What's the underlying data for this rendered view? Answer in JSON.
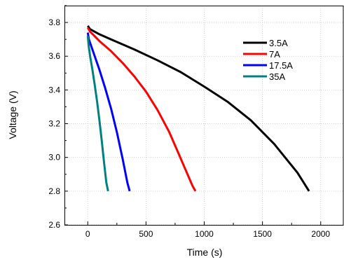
{
  "chart_data": {
    "type": "line",
    "xlabel": "Time (s)",
    "ylabel": "Voltage (V)",
    "xlim": [
      -200,
      2200
    ],
    "ylim": [
      2.6,
      3.9
    ],
    "xticks": [
      0,
      500,
      1000,
      1500,
      2000
    ],
    "xtick_labels": [
      "0",
      "500",
      "1000",
      "1500",
      "2000"
    ],
    "yticks": [
      2.6,
      2.8,
      3.0,
      3.2,
      3.4,
      3.6,
      3.8
    ],
    "ytick_labels": [
      "2.6",
      "2.8",
      "3.0",
      "3.2",
      "3.4",
      "3.6",
      "3.8"
    ],
    "grid": true,
    "legend_position": "top-right",
    "series": [
      {
        "name": "3.5A",
        "color": "#000000",
        "x": [
          0,
          20,
          60,
          100,
          200,
          400,
          600,
          800,
          1000,
          1200,
          1400,
          1600,
          1800,
          1900
        ],
        "y": [
          3.78,
          3.76,
          3.745,
          3.73,
          3.7,
          3.64,
          3.575,
          3.505,
          3.42,
          3.33,
          3.22,
          3.08,
          2.91,
          2.8
        ]
      },
      {
        "name": "7A",
        "color": "#ff0000",
        "x": [
          0,
          20,
          50,
          100,
          200,
          300,
          400,
          500,
          600,
          700,
          800,
          900,
          925
        ],
        "y": [
          3.77,
          3.745,
          3.725,
          3.69,
          3.63,
          3.56,
          3.48,
          3.39,
          3.28,
          3.15,
          2.99,
          2.83,
          2.8
        ]
      },
      {
        "name": "17.5A",
        "color": "#0000ff",
        "x": [
          0,
          10,
          30,
          60,
          100,
          150,
          200,
          250,
          300,
          340,
          360
        ],
        "y": [
          3.74,
          3.7,
          3.66,
          3.6,
          3.52,
          3.41,
          3.29,
          3.15,
          2.99,
          2.85,
          2.8
        ]
      },
      {
        "name": "35A",
        "color": "#008080",
        "x": [
          0,
          8,
          20,
          40,
          60,
          80,
          100,
          120,
          140,
          160,
          175
        ],
        "y": [
          3.72,
          3.66,
          3.6,
          3.52,
          3.43,
          3.33,
          3.22,
          3.1,
          2.97,
          2.85,
          2.8
        ]
      }
    ]
  }
}
